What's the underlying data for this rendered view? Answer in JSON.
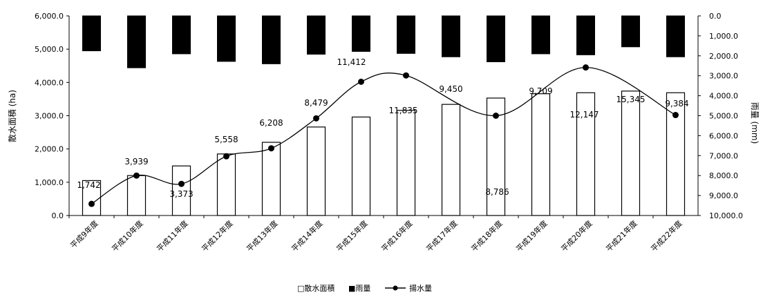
{
  "chart_data": {
    "type": "bar",
    "categories": [
      "平成9年度",
      "平成10年度",
      "平成11年度",
      "平成12年度",
      "平成13年度",
      "平成14年度",
      "平成15年度",
      "平成16年度",
      "平成17年度",
      "平成18年度",
      "平成19年度",
      "平成20年度",
      "平成21年度",
      "平成22年度"
    ],
    "series": [
      {
        "name": "散水面積",
        "kind": "bar",
        "axis": "left",
        "color": "#ffffff",
        "values": [
          1050,
          1200,
          1490,
          1850,
          2200,
          2660,
          2960,
          3160,
          3340,
          3530,
          3660,
          3690,
          3740,
          3690
        ]
      },
      {
        "name": "雨量",
        "kind": "bar",
        "axis": "right",
        "direction": "downward-from-top",
        "color": "#000000",
        "values": [
          1750,
          2600,
          1900,
          2280,
          2400,
          1920,
          1780,
          1880,
          2050,
          2300,
          1900,
          1950,
          1550,
          2050
        ]
      },
      {
        "name": "揚水量",
        "kind": "line",
        "axis": "left",
        "color": "#000000",
        "marker": "circle",
        "values": [
          350,
          1200,
          950,
          1780,
          2020,
          2920,
          4020,
          4210,
          null,
          3000,
          null,
          4450,
          null,
          3020
        ],
        "labels": [
          "1,742",
          "3,939",
          "3,373",
          "5,558",
          "6,208",
          "8,479",
          "11,412",
          "11,835",
          "9,450",
          "8,786",
          "9,709",
          "12,147",
          "15,345",
          "9,384"
        ]
      }
    ],
    "y_left": {
      "label": "散水面積 (ha)",
      "min": 0,
      "max": 6000,
      "ticks": [
        "0.0",
        "1,000.0",
        "2,000.0",
        "3,000.0",
        "4,000.0",
        "5,000.0",
        "6,000.0"
      ]
    },
    "y_right": {
      "label": "雨量 (mm)",
      "min": 0,
      "max": 10000,
      "inverted": true,
      "ticks": [
        "0.0",
        "1,000.0",
        "2,000.0",
        "3,000.0",
        "4,000.0",
        "5,000.0",
        "6,000.0",
        "7,000.0",
        "8,000.0",
        "9,000.0",
        "10,000.0"
      ]
    },
    "legend": {
      "placement": "bottom",
      "items": [
        "□散水面積",
        "■雨量",
        "揚水量"
      ]
    },
    "grid": false
  }
}
